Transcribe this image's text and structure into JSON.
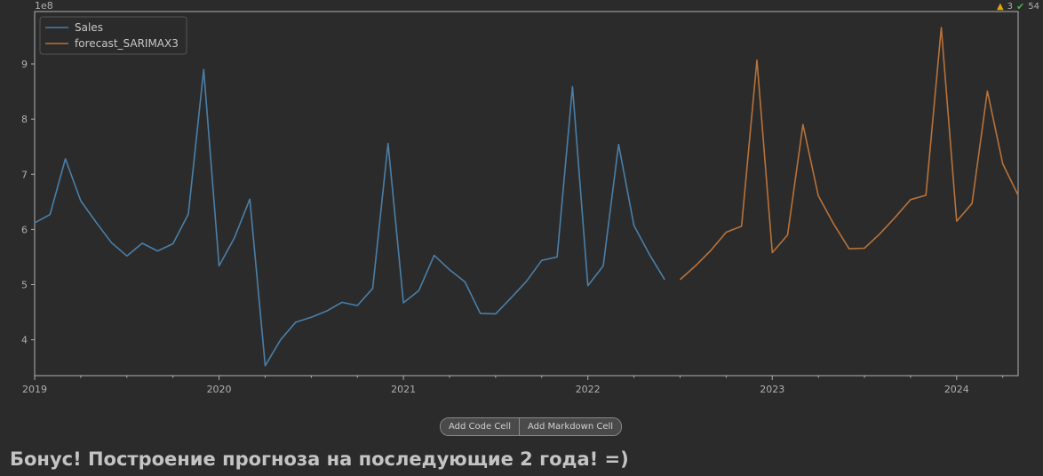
{
  "inspection": {
    "warnings": "3",
    "ok": "54"
  },
  "toolbar": {
    "add_code_cell": "Add Code Cell",
    "add_markdown_cell": "Add Markdown Cell"
  },
  "markdown": {
    "heading": "Бонус! Построение прогноза на последующие 2 года! =)"
  },
  "colors": {
    "background": "#2b2b2b",
    "axes": "#b0b0b0",
    "sales": "#4a7fa8",
    "forecast": "#b8723a"
  },
  "chart_data": {
    "type": "line",
    "offset_text": "1e8",
    "ylim": [
      3.35,
      9.95
    ],
    "xlim": [
      "2019-01",
      "2024-05"
    ],
    "yticks": [
      4,
      5,
      6,
      7,
      8,
      9
    ],
    "ytick_labels": [
      "4",
      "5",
      "6",
      "7",
      "8",
      "9"
    ],
    "xticks": [
      "2019-01",
      "2020-01",
      "2021-01",
      "2022-01",
      "2023-01",
      "2024-01"
    ],
    "xtick_labels": [
      "2019",
      "2020",
      "2021",
      "2022",
      "2023",
      "2024"
    ],
    "grid": false,
    "legend": "top-left",
    "series": [
      {
        "name": "Sales",
        "x": [
          "2019-01",
          "2019-02",
          "2019-03",
          "2019-04",
          "2019-05",
          "2019-06",
          "2019-07",
          "2019-08",
          "2019-09",
          "2019-10",
          "2019-11",
          "2019-12",
          "2020-01",
          "2020-02",
          "2020-03",
          "2020-04",
          "2020-05",
          "2020-06",
          "2020-07",
          "2020-08",
          "2020-09",
          "2020-10",
          "2020-11",
          "2020-12",
          "2021-01",
          "2021-02",
          "2021-03",
          "2021-04",
          "2021-05",
          "2021-06",
          "2021-07",
          "2021-08",
          "2021-09",
          "2021-10",
          "2021-11",
          "2021-12",
          "2022-01",
          "2022-02",
          "2022-03",
          "2022-04",
          "2022-05",
          "2022-06"
        ],
        "values": [
          6.12,
          6.27,
          7.28,
          6.52,
          6.13,
          5.76,
          5.52,
          5.75,
          5.61,
          5.74,
          6.28,
          8.9,
          5.34,
          5.85,
          6.55,
          3.53,
          4.0,
          4.32,
          4.41,
          4.52,
          4.68,
          4.62,
          4.93,
          7.56,
          4.67,
          4.89,
          5.53,
          5.27,
          5.05,
          4.48,
          4.47,
          4.76,
          5.06,
          5.44,
          5.5,
          8.59,
          4.98,
          5.34,
          7.54,
          6.07,
          5.55,
          5.09
        ]
      },
      {
        "name": "forecast_SARIMAX3",
        "x": [
          "2022-07",
          "2022-08",
          "2022-09",
          "2022-10",
          "2022-11",
          "2022-12",
          "2023-01",
          "2023-02",
          "2023-03",
          "2023-04",
          "2023-05",
          "2023-06",
          "2023-07",
          "2023-08",
          "2023-09",
          "2023-10",
          "2023-11",
          "2023-12",
          "2024-01",
          "2024-02",
          "2024-03",
          "2024-04",
          "2024-05"
        ],
        "values": [
          5.09,
          5.34,
          5.62,
          5.95,
          6.06,
          9.07,
          5.58,
          5.9,
          7.9,
          6.61,
          6.1,
          5.65,
          5.66,
          5.92,
          6.22,
          6.54,
          6.62,
          9.66,
          6.15,
          6.47,
          8.51,
          7.19,
          6.62
        ]
      }
    ]
  }
}
